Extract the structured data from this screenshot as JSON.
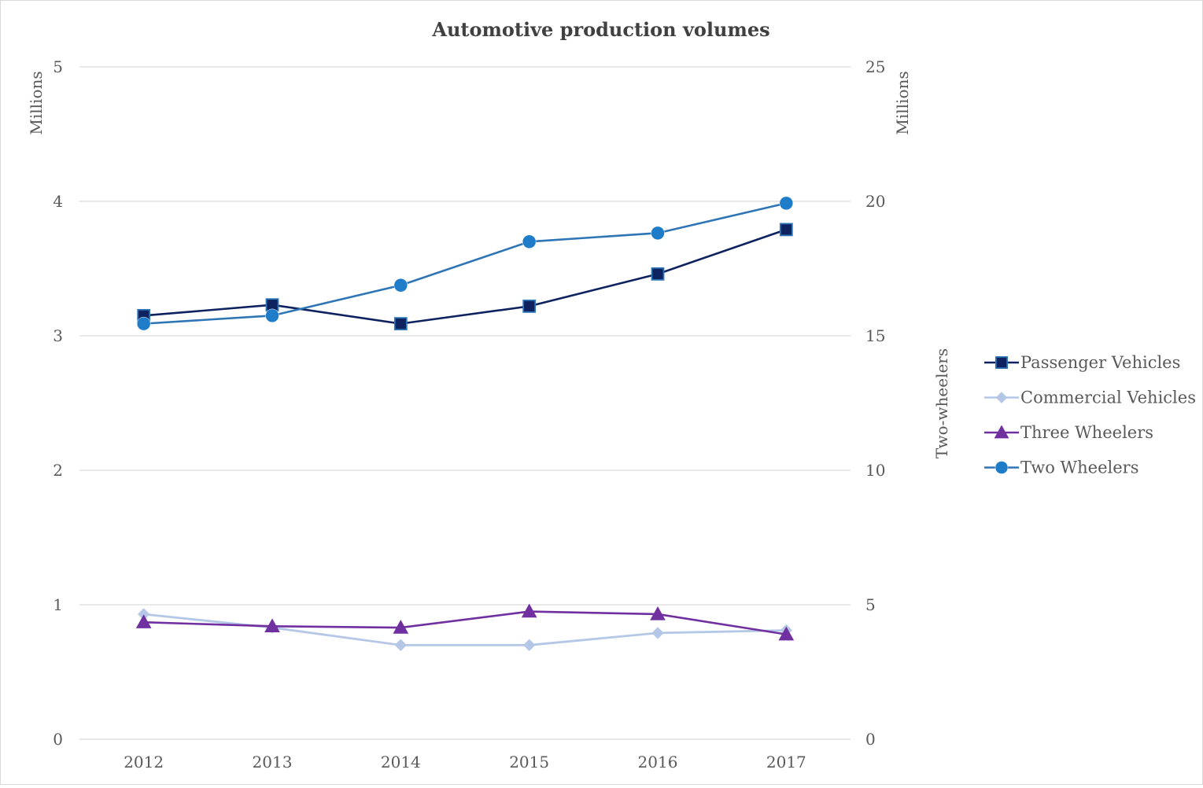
{
  "chart_data": {
    "type": "line",
    "title": "Automotive production volumes",
    "categories": [
      "2012",
      "2013",
      "2014",
      "2015",
      "2016",
      "2017"
    ],
    "left_axis": {
      "label": "Millions",
      "ylim": [
        0,
        5
      ],
      "ticks": [
        "0",
        "1",
        "2",
        "3",
        "4",
        "5"
      ]
    },
    "right_axis": {
      "label": "Millions",
      "title": "Two-wheelers",
      "ylim": [
        0,
        25
      ],
      "ticks": [
        "0",
        "5",
        "10",
        "15",
        "20",
        "25"
      ]
    },
    "grid": true,
    "legend_position": "right",
    "series": [
      {
        "name": "Passenger Vehicles",
        "axis": "left",
        "marker": "square",
        "color": "#0e2260",
        "values": [
          3.15,
          3.23,
          3.09,
          3.22,
          3.46,
          3.79
        ]
      },
      {
        "name": "Commercial Vehicles",
        "axis": "left",
        "marker": "diamond",
        "color": "#b4c7e7",
        "values": [
          0.93,
          0.83,
          0.7,
          0.7,
          0.79,
          0.81
        ]
      },
      {
        "name": "Three Wheelers",
        "axis": "left",
        "marker": "triangle",
        "color": "#7030a0",
        "values": [
          0.87,
          0.84,
          0.83,
          0.95,
          0.93,
          0.78
        ]
      },
      {
        "name": "Two Wheelers",
        "axis": "right",
        "marker": "circle",
        "color": "#2e75b6",
        "marker_color": "#1f7cc8",
        "values": [
          15.45,
          15.75,
          16.88,
          18.5,
          18.82,
          19.93
        ]
      }
    ]
  }
}
